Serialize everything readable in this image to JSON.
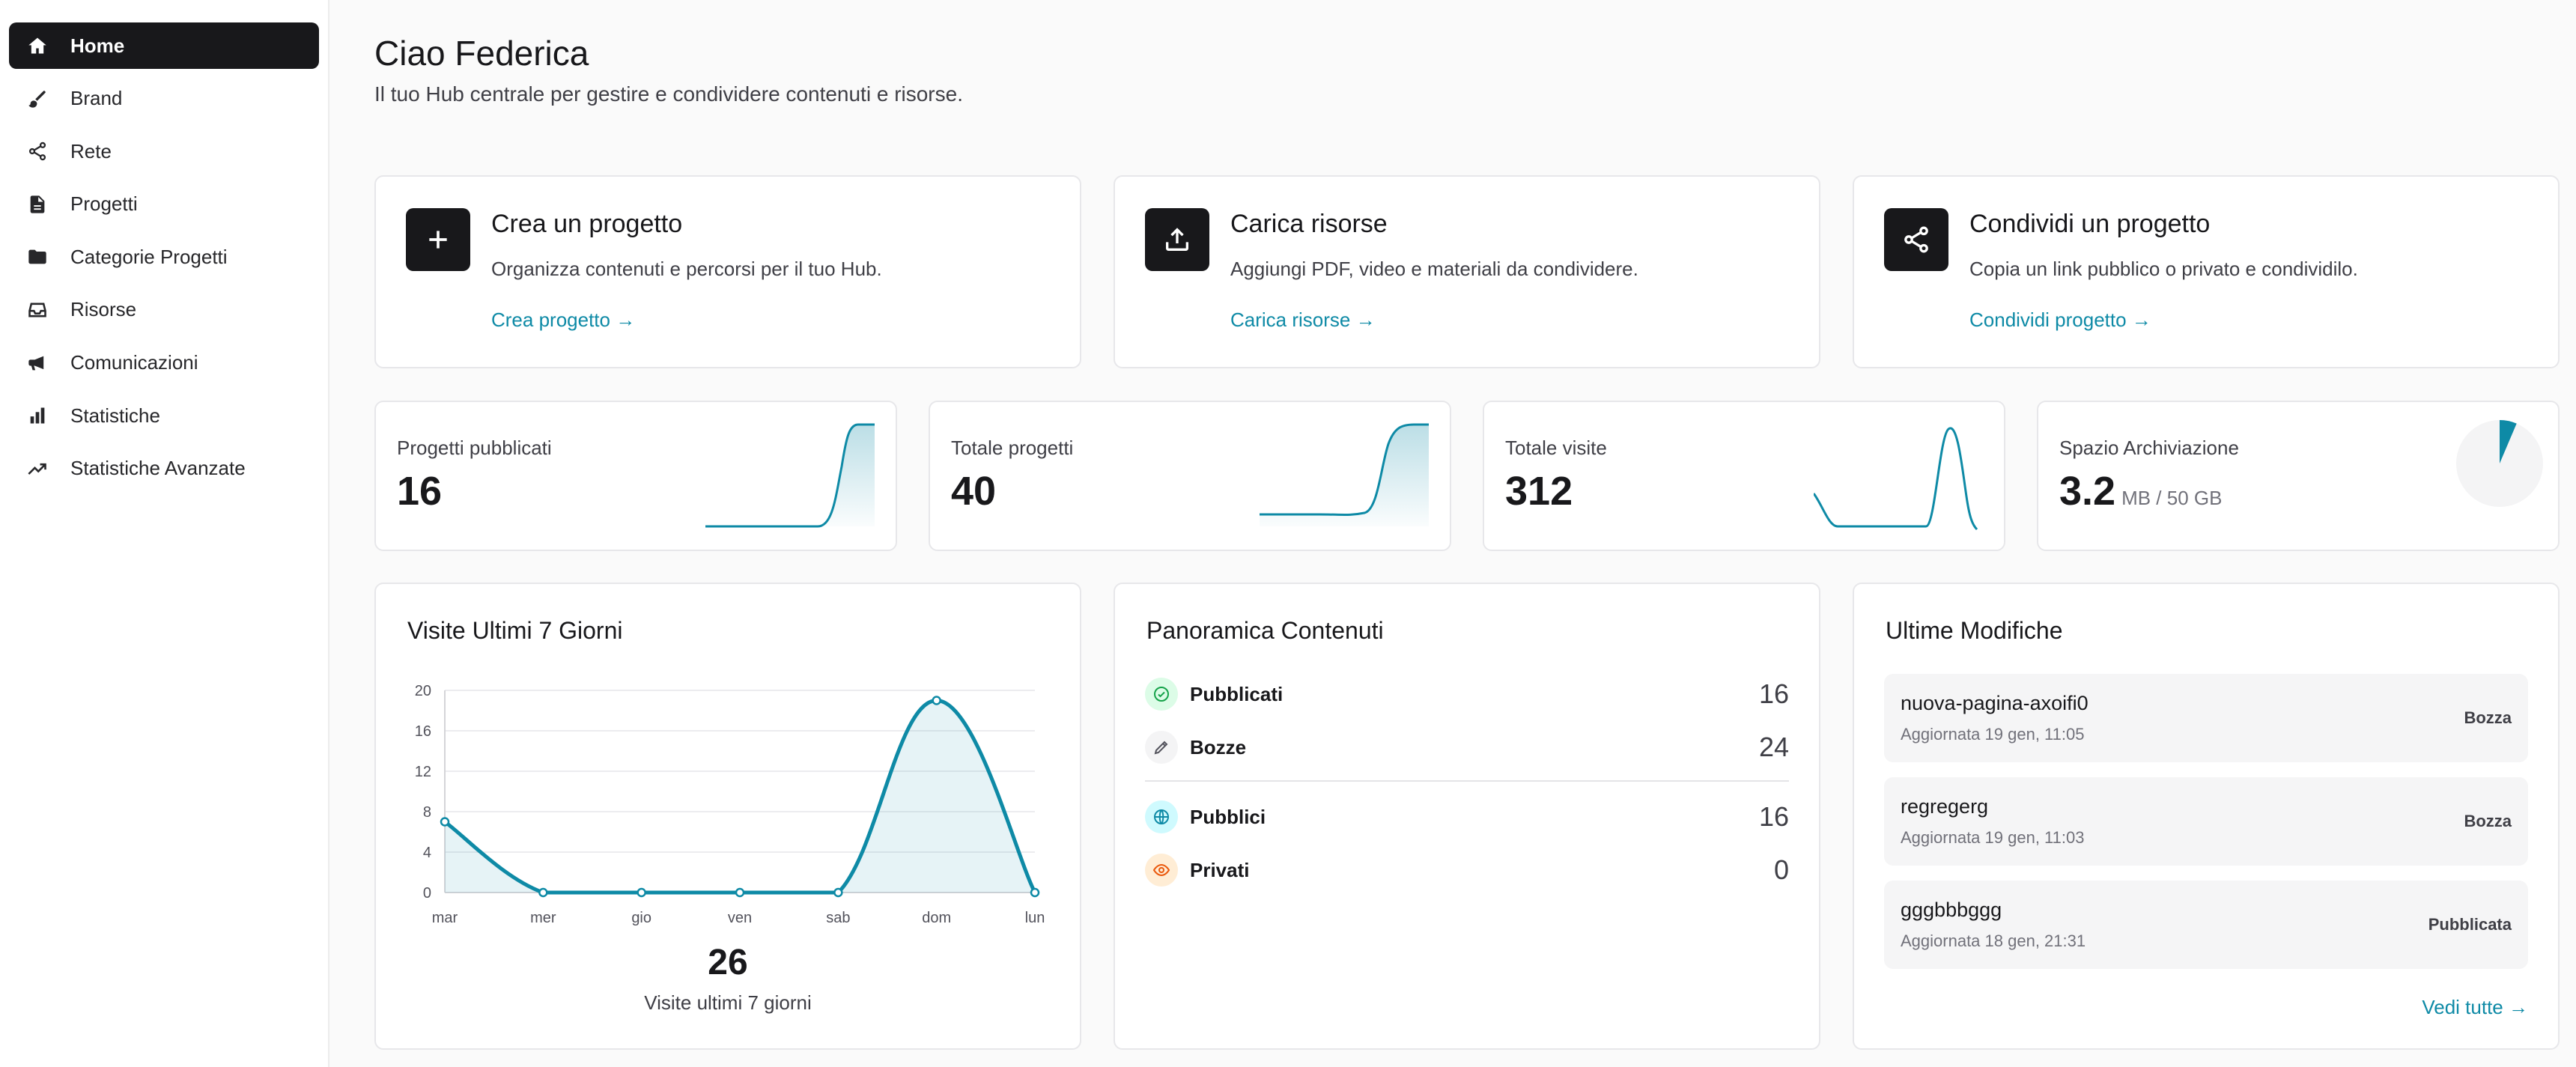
{
  "sidebar": {
    "items": [
      {
        "label": "Home",
        "icon": "home-icon"
      },
      {
        "label": "Brand",
        "icon": "brush-icon"
      },
      {
        "label": "Rete",
        "icon": "share-icon"
      },
      {
        "label": "Progetti",
        "icon": "file-icon"
      },
      {
        "label": "Categorie Progetti",
        "icon": "folder-icon"
      },
      {
        "label": "Risorse",
        "icon": "inbox-icon"
      },
      {
        "label": "Comunicazioni",
        "icon": "megaphone-icon"
      },
      {
        "label": "Statistiche",
        "icon": "bar-chart-icon"
      },
      {
        "label": "Statistiche Avanzate",
        "icon": "trending-up-icon"
      }
    ]
  },
  "header": {
    "title": "Ciao Federica",
    "subtitle": "Il tuo Hub centrale per gestire e condividere contenuti e risorse."
  },
  "actions": [
    {
      "title": "Crea un progetto",
      "desc": "Organizza contenuti e percorsi per il tuo Hub.",
      "link": "Crea progetto →",
      "icon": "plus-icon"
    },
    {
      "title": "Carica risorse",
      "desc": "Aggiungi PDF, video e materiali da condividere.",
      "link": "Carica risorse →",
      "icon": "upload-icon"
    },
    {
      "title": "Condividi un progetto",
      "desc": "Copia un link pubblico o privato e condividilo.",
      "link": "Condividi progetto →",
      "icon": "share-icon"
    }
  ],
  "stats": [
    {
      "label": "Progetti pubblicati",
      "value": "16"
    },
    {
      "label": "Totale progetti",
      "value": "40"
    },
    {
      "label": "Totale visite",
      "value": "312"
    },
    {
      "label": "Spazio Archiviazione",
      "value": "3.2",
      "unit": "MB / 50 GB",
      "fraction": 0.064
    }
  ],
  "visits": {
    "title": "Visite Ultimi 7 Giorni",
    "total": "26",
    "total_label": "Visite ultimi 7 giorni"
  },
  "overview": {
    "title": "Panoramica Contenuti",
    "rows": [
      {
        "label": "Pubblicati",
        "value": "16",
        "icon": "check-circle-icon",
        "color": "#16a34a"
      },
      {
        "label": "Bozze",
        "value": "24",
        "icon": "pencil-icon",
        "color": "#52525b"
      },
      {
        "label": "Pubblici",
        "value": "16",
        "icon": "globe-icon",
        "color": "#0e8aa6"
      },
      {
        "label": "Privati",
        "value": "0",
        "icon": "eye-icon",
        "color": "#ea580c"
      }
    ]
  },
  "modifications": {
    "title": "Ultime Modifiche",
    "items": [
      {
        "name": "nuova-pagina-axoifi0",
        "date": "Aggiornata 19 gen, 11:05",
        "status": "Bozza"
      },
      {
        "name": "regregerg",
        "date": "Aggiornata 19 gen, 11:03",
        "status": "Bozza"
      },
      {
        "name": "gggbbbggg",
        "date": "Aggiornata 18 gen, 21:31",
        "status": "Pubblicata"
      }
    ],
    "see_all": "Vedi tutte →"
  },
  "colors": {
    "accent": "#0e8aa6",
    "dark": "#18181b"
  },
  "chart_data": {
    "type": "line",
    "categories": [
      "mar",
      "mer",
      "gio",
      "ven",
      "sab",
      "dom",
      "lun"
    ],
    "values": [
      7,
      0,
      0,
      0,
      0,
      19,
      0
    ],
    "ylim": [
      0,
      20
    ],
    "yticks": [
      "0",
      "4",
      "8",
      "12",
      "16",
      "20"
    ],
    "grid": true
  }
}
